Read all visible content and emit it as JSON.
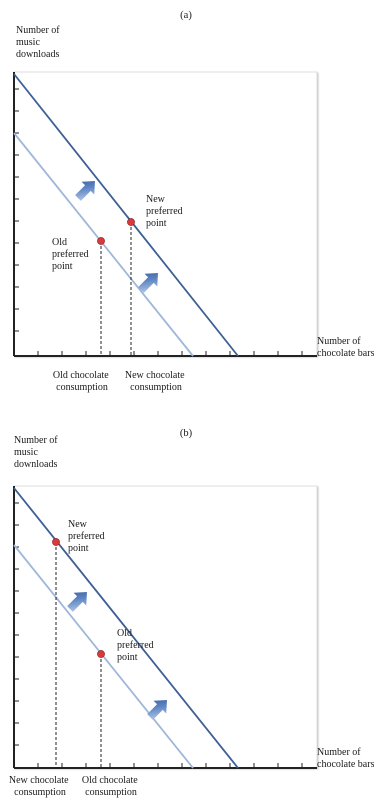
{
  "panels": [
    {
      "caption": "(a)",
      "y_axis_label": [
        "Number of",
        "music",
        "downloads"
      ],
      "x_axis_label": [
        "Number of",
        "chocolate bars"
      ],
      "old_point_label": [
        "Old",
        "preferred",
        "point"
      ],
      "new_point_label": [
        "New",
        "preferred",
        "point"
      ],
      "old_consumption_label": [
        "Old chocolate",
        "consumption"
      ],
      "new_consumption_label": [
        "New chocolate",
        "consumption"
      ]
    },
    {
      "caption": "(b)",
      "y_axis_label": [
        "Number of",
        "music",
        "downloads"
      ],
      "x_axis_label": [
        "Number of",
        "chocolate bars"
      ],
      "new_point_label": [
        "New",
        "preferred",
        "point"
      ],
      "old_point_label": [
        "Old",
        "preferred",
        "point"
      ],
      "new_consumption_label": [
        "New chocolate",
        "consumption"
      ],
      "old_consumption_label": [
        "Old chocolate",
        "consumption"
      ]
    }
  ],
  "colors": {
    "old_budget_line": "#9fb7d9",
    "new_budget_line": "#3d5f95",
    "point": "#d63a3a",
    "arrow": "#3f63a8",
    "axis": "#222222"
  }
}
